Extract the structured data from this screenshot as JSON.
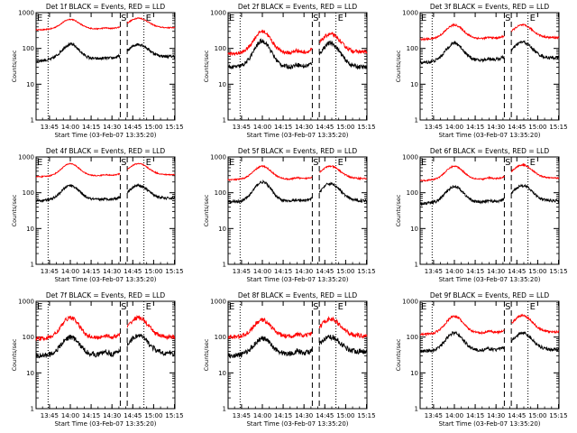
{
  "figure": {
    "panel_count": 9,
    "columns": 3
  },
  "common": {
    "ylabel": "Counts/sec",
    "xlabel": "Start Time (03-Feb-07 13:35:20)",
    "xticks": [
      "13:45",
      "14:00",
      "14:15",
      "14:30",
      "14:45",
      "15:00",
      "15:15"
    ],
    "yticks": [
      "1",
      "10",
      "100",
      "1000"
    ],
    "markers": {
      "eclipse_start": "E",
      "saa": "S",
      "eclipse_end": "E"
    },
    "colors": {
      "events": "#000000",
      "lld": "#ff0000",
      "axes": "#000000"
    }
  },
  "chart_data": [
    {
      "type": "line",
      "title": "Det 1f BLACK = Events, RED = LLD",
      "yscale": "log",
      "ylim": [
        1,
        1000
      ],
      "xlim": [
        "13:35:20",
        "15:15:20"
      ],
      "markers_x": [
        "13:44",
        "14:36",
        "14:41",
        "14:53"
      ],
      "series": [
        {
          "name": "Events",
          "color": "#000000",
          "profile": {
            "start": 45,
            "peak": 130,
            "trough": 55,
            "peak2": 130,
            "end": 60,
            "noise": 0.08
          }
        },
        {
          "name": "LLD",
          "color": "#ff0000",
          "profile": {
            "start": 330,
            "peak": 650,
            "trough": 400,
            "peak2": 700,
            "end": 380,
            "noise": 0.03
          }
        }
      ]
    },
    {
      "type": "line",
      "title": "Det 2f BLACK = Events, RED = LLD",
      "yscale": "log",
      "ylim": [
        1,
        1000
      ],
      "xlim": [
        "13:35:20",
        "15:15:20"
      ],
      "markers_x": [
        "13:44",
        "14:36",
        "14:41",
        "14:53"
      ],
      "series": [
        {
          "name": "Events",
          "color": "#000000",
          "profile": {
            "start": 30,
            "peak": 160,
            "trough": 45,
            "peak2": 140,
            "end": 30,
            "noise": 0.12
          }
        },
        {
          "name": "LLD",
          "color": "#ff0000",
          "profile": {
            "start": 70,
            "peak": 300,
            "trough": 110,
            "peak2": 250,
            "end": 80,
            "noise": 0.1
          }
        }
      ]
    },
    {
      "type": "line",
      "title": "Det 3f BLACK = Events, RED = LLD",
      "yscale": "log",
      "ylim": [
        1,
        1000
      ],
      "xlim": [
        "13:35:20",
        "15:15:20"
      ],
      "markers_x": [
        "13:44",
        "14:36",
        "14:41",
        "14:53"
      ],
      "series": [
        {
          "name": "Events",
          "color": "#000000",
          "profile": {
            "start": 40,
            "peak": 140,
            "trough": 60,
            "peak2": 150,
            "end": 55,
            "noise": 0.09
          }
        },
        {
          "name": "LLD",
          "color": "#ff0000",
          "profile": {
            "start": 180,
            "peak": 450,
            "trough": 220,
            "peak2": 450,
            "end": 200,
            "noise": 0.05
          }
        }
      ]
    },
    {
      "type": "line",
      "title": "Det 4f BLACK = Events, RED = LLD",
      "yscale": "log",
      "ylim": [
        1,
        1000
      ],
      "xlim": [
        "13:35:20",
        "15:15:20"
      ],
      "markers_x": [
        "13:44",
        "14:36",
        "14:41",
        "14:53"
      ],
      "series": [
        {
          "name": "Events",
          "color": "#000000",
          "profile": {
            "start": 60,
            "peak": 160,
            "trough": 70,
            "peak2": 160,
            "end": 70,
            "noise": 0.07
          }
        },
        {
          "name": "LLD",
          "color": "#ff0000",
          "profile": {
            "start": 280,
            "peak": 650,
            "trough": 350,
            "peak2": 650,
            "end": 320,
            "noise": 0.03
          }
        }
      ]
    },
    {
      "type": "line",
      "title": "Det 5f BLACK = Events, RED = LLD",
      "yscale": "log",
      "ylim": [
        1,
        1000
      ],
      "xlim": [
        "13:35:20",
        "15:15:20"
      ],
      "markers_x": [
        "13:44",
        "14:36",
        "14:41",
        "14:53"
      ],
      "series": [
        {
          "name": "Events",
          "color": "#000000",
          "profile": {
            "start": 55,
            "peak": 200,
            "trough": 70,
            "peak2": 180,
            "end": 60,
            "noise": 0.08
          }
        },
        {
          "name": "LLD",
          "color": "#ff0000",
          "profile": {
            "start": 230,
            "peak": 550,
            "trough": 300,
            "peak2": 550,
            "end": 250,
            "noise": 0.04
          }
        }
      ]
    },
    {
      "type": "line",
      "title": "Det 6f BLACK = Events, RED = LLD",
      "yscale": "log",
      "ylim": [
        1,
        1000
      ],
      "xlim": [
        "13:35:20",
        "15:15:20"
      ],
      "markers_x": [
        "13:44",
        "14:36",
        "14:41",
        "14:53"
      ],
      "series": [
        {
          "name": "Events",
          "color": "#000000",
          "profile": {
            "start": 50,
            "peak": 150,
            "trough": 70,
            "peak2": 160,
            "end": 60,
            "noise": 0.08
          }
        },
        {
          "name": "LLD",
          "color": "#ff0000",
          "profile": {
            "start": 220,
            "peak": 550,
            "trough": 300,
            "peak2": 600,
            "end": 260,
            "noise": 0.04
          }
        }
      ]
    },
    {
      "type": "line",
      "title": "Det 7f BLACK = Events, RED = LLD",
      "yscale": "log",
      "ylim": [
        1,
        1000
      ],
      "xlim": [
        "13:35:20",
        "15:15:20"
      ],
      "markers_x": [
        "13:44",
        "14:36",
        "14:41",
        "14:53"
      ],
      "series": [
        {
          "name": "Events",
          "color": "#000000",
          "profile": {
            "start": 30,
            "peak": 100,
            "trough": 50,
            "peak2": 110,
            "end": 35,
            "noise": 0.15
          }
        },
        {
          "name": "LLD",
          "color": "#ff0000",
          "profile": {
            "start": 90,
            "peak": 350,
            "trough": 140,
            "peak2": 350,
            "end": 100,
            "noise": 0.12
          }
        }
      ]
    },
    {
      "type": "line",
      "title": "Det 8f BLACK = Events, RED = LLD",
      "yscale": "log",
      "ylim": [
        1,
        1000
      ],
      "xlim": [
        "13:35:20",
        "15:15:20"
      ],
      "markers_x": [
        "13:44",
        "14:36",
        "14:41",
        "14:53"
      ],
      "series": [
        {
          "name": "Events",
          "color": "#000000",
          "profile": {
            "start": 30,
            "peak": 90,
            "trough": 50,
            "peak2": 100,
            "end": 40,
            "noise": 0.15
          }
        },
        {
          "name": "LLD",
          "color": "#ff0000",
          "profile": {
            "start": 100,
            "peak": 300,
            "trough": 140,
            "peak2": 320,
            "end": 110,
            "noise": 0.12
          }
        }
      ]
    },
    {
      "type": "line",
      "title": "Det 9f BLACK = Events, RED = LLD",
      "yscale": "log",
      "ylim": [
        1,
        1000
      ],
      "xlim": [
        "13:35:20",
        "15:15:20"
      ],
      "markers_x": [
        "13:44",
        "14:36",
        "14:41",
        "14:53"
      ],
      "series": [
        {
          "name": "Events",
          "color": "#000000",
          "profile": {
            "start": 40,
            "peak": 130,
            "trough": 55,
            "peak2": 130,
            "end": 45,
            "noise": 0.09
          }
        },
        {
          "name": "LLD",
          "color": "#ff0000",
          "profile": {
            "start": 120,
            "peak": 380,
            "trough": 180,
            "peak2": 400,
            "end": 140,
            "noise": 0.06
          }
        }
      ]
    }
  ]
}
